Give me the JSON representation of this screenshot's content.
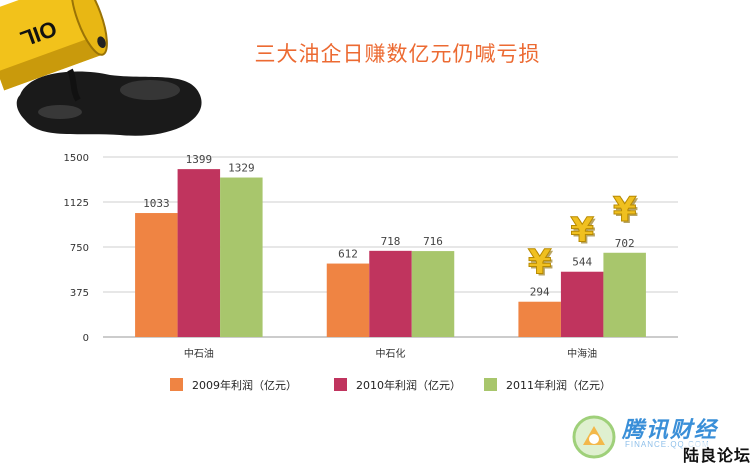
{
  "title": "三大油企日赚数亿元仍喊亏损",
  "barrel_label": "OIL",
  "chart_data": {
    "type": "bar",
    "title": "三大油企日赚数亿元仍喊亏损",
    "categories": [
      "中石油",
      "中石化",
      "中海油"
    ],
    "series": [
      {
        "name": "2009年利润（亿元）",
        "color": "#ef8443",
        "values": [
          1033,
          612,
          294
        ]
      },
      {
        "name": "2010年利润（亿元）",
        "color": "#c0345e",
        "values": [
          1399,
          718,
          544
        ]
      },
      {
        "name": "2011年利润（亿元）",
        "color": "#a8c66c",
        "values": [
          1329,
          716,
          702
        ]
      }
    ],
    "yticks": [
      0,
      375,
      750,
      1125,
      1500
    ],
    "ylim": [
      0,
      1500
    ],
    "xlabel": "",
    "ylabel": "",
    "grid": true,
    "legend": "bottom"
  },
  "decorations": {
    "yen_symbol": "¥",
    "yen_color": "#f0c020"
  },
  "watermark": {
    "brand": "腾讯财经",
    "brand_sub": "FINANCE.QQ.COM",
    "forum": "陆良论坛"
  }
}
